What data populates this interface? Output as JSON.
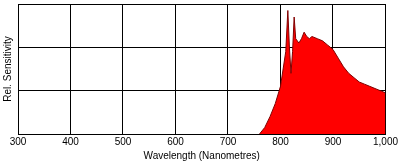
{
  "chart_data": {
    "type": "area",
    "x_label": "Wavelength (Nanometres)",
    "y_label": "Rel. Sensitivity",
    "x": [
      760,
      770,
      780,
      790,
      800,
      805,
      810,
      814,
      817,
      820,
      823,
      826,
      829,
      835,
      840,
      845,
      850,
      855,
      860,
      870,
      880,
      890,
      900,
      910,
      920,
      930,
      940,
      950,
      960,
      970,
      980,
      990,
      1000
    ],
    "values": [
      0,
      0.15,
      0.4,
      0.7,
      1.1,
      1.5,
      1.9,
      2.85,
      2.0,
      1.4,
      1.9,
      2.7,
      2.2,
      2.1,
      2.2,
      2.35,
      2.25,
      2.2,
      2.25,
      2.2,
      2.15,
      2.05,
      1.95,
      1.75,
      1.55,
      1.4,
      1.3,
      1.2,
      1.15,
      1.1,
      1.05,
      1.0,
      0.95
    ],
    "color": "#ff0000",
    "xlim": [
      300,
      1000
    ],
    "xticks": [
      300,
      400,
      500,
      600,
      700,
      800,
      900,
      1000
    ],
    "ylim": [
      0,
      3
    ],
    "yticks": [
      0,
      1,
      2,
      3
    ],
    "grid": true,
    "tick_labels": "x"
  }
}
